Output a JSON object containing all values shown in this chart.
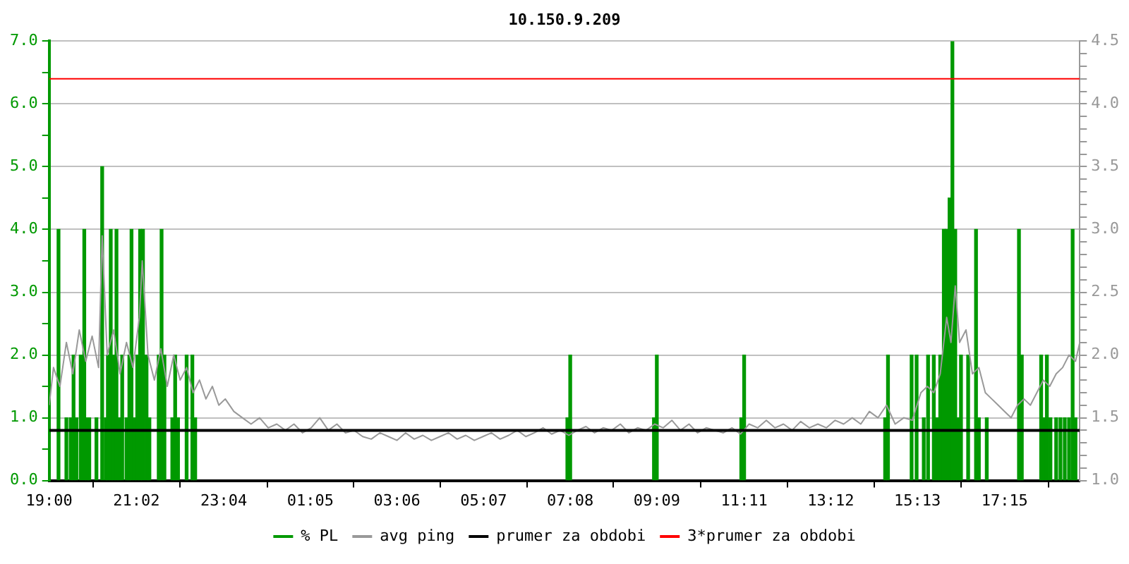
{
  "chart_data": {
    "type": "bar",
    "title": "10.150.9.209",
    "xlim": [
      "2000-01-01T19:00",
      "2000-01-02T19:00"
    ],
    "xticks": [
      {
        "value": "2000-01-01T19:00",
        "label": "19:00"
      },
      {
        "value": "2000-01-01T21:02",
        "label": "21:02"
      },
      {
        "value": "2000-01-01T23:04",
        "label": "23:04"
      },
      {
        "value": "2000-01-02T01:05",
        "label": "01:05"
      },
      {
        "value": "2000-01-02T03:06",
        "label": "03:06"
      },
      {
        "value": "2000-01-02T05:07",
        "label": "05:07"
      },
      {
        "value": "2000-01-02T07:08",
        "label": "07:08"
      },
      {
        "value": "2000-01-02T09:09",
        "label": "09:09"
      },
      {
        "value": "2000-01-02T11:11",
        "label": "11:11"
      },
      {
        "value": "2000-01-02T13:12",
        "label": "13:12"
      },
      {
        "value": "2000-01-02T15:13",
        "label": "15:13"
      },
      {
        "value": "2000-01-02T17:15",
        "label": "17:15"
      }
    ],
    "ylim": [
      0,
      7
    ],
    "yticks": [
      {
        "value": 0,
        "label": "0.0"
      },
      {
        "value": 0.5,
        "label": null
      },
      {
        "value": 1,
        "label": "1.0"
      },
      {
        "value": 1.5,
        "label": null
      },
      {
        "value": 2,
        "label": "2.0"
      },
      {
        "value": 2.5,
        "label": null
      },
      {
        "value": 3,
        "label": "3.0"
      },
      {
        "value": 3.5,
        "label": null
      },
      {
        "value": 4,
        "label": "4.0"
      },
      {
        "value": 4.5,
        "label": null
      },
      {
        "value": 5,
        "label": "5.0"
      },
      {
        "value": 5.5,
        "label": null
      },
      {
        "value": 6,
        "label": "6.0"
      },
      {
        "value": 6.5,
        "label": null
      },
      {
        "value": 7,
        "label": "7.0"
      }
    ],
    "y2lim": [
      1,
      4.5
    ],
    "y2ticks": [
      {
        "value": 1,
        "label": "1.0"
      },
      {
        "value": 1.1,
        "label": null
      },
      {
        "value": 1.2,
        "label": null
      },
      {
        "value": 1.3,
        "label": null
      },
      {
        "value": 1.4,
        "label": null
      },
      {
        "value": 1.5,
        "label": "1.5"
      },
      {
        "value": 1.6,
        "label": null
      },
      {
        "value": 1.7,
        "label": null
      },
      {
        "value": 1.8,
        "label": null
      },
      {
        "value": 1.9,
        "label": null
      },
      {
        "value": 2,
        "label": "2.0"
      },
      {
        "value": 2.1,
        "label": null
      },
      {
        "value": 2.2,
        "label": null
      },
      {
        "value": 2.3,
        "label": null
      },
      {
        "value": 2.4,
        "label": null
      },
      {
        "value": 2.5,
        "label": "2.5"
      },
      {
        "value": 2.6,
        "label": null
      },
      {
        "value": 2.7,
        "label": null
      },
      {
        "value": 2.8,
        "label": null
      },
      {
        "value": 2.9,
        "label": null
      },
      {
        "value": 3,
        "label": "3.0"
      },
      {
        "value": 3.1,
        "label": null
      },
      {
        "value": 3.2,
        "label": null
      },
      {
        "value": 3.3,
        "label": null
      },
      {
        "value": 3.4,
        "label": null
      },
      {
        "value": 3.5,
        "label": "3.5"
      },
      {
        "value": 3.6,
        "label": null
      },
      {
        "value": 3.7,
        "label": null
      },
      {
        "value": 3.8,
        "label": null
      },
      {
        "value": 3.9,
        "label": null
      },
      {
        "value": 4,
        "label": "4.0"
      },
      {
        "value": 4.1,
        "label": null
      },
      {
        "value": 4.2,
        "label": null
      },
      {
        "value": 4.3,
        "label": null
      },
      {
        "value": 4.4,
        "label": null
      },
      {
        "value": 4.5,
        "label": "4.5"
      }
    ],
    "grid": "y",
    "legend": "bottom",
    "series": [
      {
        "name": "% PL",
        "color": "#009900",
        "x": [
          "2000-01-01T19:13",
          "2000-01-01T19:24",
          "2000-01-01T19:30",
          "2000-01-01T19:34",
          "2000-01-01T19:38",
          "2000-01-01T19:42",
          "2000-01-01T19:44",
          "2000-01-01T19:49",
          "2000-01-01T19:53",
          "2000-01-01T19:56",
          "2000-01-01T20:06",
          "2000-01-01T20:14",
          "2000-01-01T20:19",
          "2000-01-01T20:22",
          "2000-01-01T20:26",
          "2000-01-01T20:30",
          "2000-01-01T20:34",
          "2000-01-01T20:38",
          "2000-01-01T20:42",
          "2000-01-01T20:48",
          "2000-01-01T20:52",
          "2000-01-01T20:55",
          "2000-01-01T20:59",
          "2000-01-01T21:03",
          "2000-01-01T21:07",
          "2000-01-01T21:11",
          "2000-01-01T21:16",
          "2000-01-01T21:20",
          "2000-01-01T21:33",
          "2000-01-01T21:37",
          "2000-01-01T21:41",
          "2000-01-01T21:52",
          "2000-01-01T21:56",
          "2000-01-01T22:00",
          "2000-01-01T22:12",
          "2000-01-01T22:20",
          "2000-01-01T22:24",
          "2000-01-02T07:04",
          "2000-01-02T07:08",
          "2000-01-02T09:05",
          "2000-01-02T09:09",
          "2000-01-02T11:07",
          "2000-01-02T11:11",
          "2000-01-02T14:28",
          "2000-01-02T14:32",
          "2000-01-02T15:05",
          "2000-01-02T15:12",
          "2000-01-02T15:22",
          "2000-01-02T15:28",
          "2000-01-02T15:36",
          "2000-01-02T15:41",
          "2000-01-02T15:45",
          "2000-01-02T15:50",
          "2000-01-02T15:54",
          "2000-01-02T15:58",
          "2000-01-02T16:02",
          "2000-01-02T16:06",
          "2000-01-02T16:10",
          "2000-01-02T16:14",
          "2000-01-02T16:24",
          "2000-01-02T16:35",
          "2000-01-02T16:39",
          "2000-01-02T16:50",
          "2000-01-02T17:35",
          "2000-01-02T17:39",
          "2000-01-02T18:06",
          "2000-01-02T18:10",
          "2000-01-02T18:14",
          "2000-01-02T18:19",
          "2000-01-02T18:27",
          "2000-01-02T18:33",
          "2000-01-02T18:39",
          "2000-01-02T18:45",
          "2000-01-02T18:50",
          "2000-01-02T18:54"
        ],
        "values": [
          4,
          1,
          1,
          2,
          1,
          null,
          2,
          4,
          1,
          1,
          1,
          5,
          1,
          2,
          4,
          2,
          4,
          1,
          2,
          1,
          2,
          4,
          1,
          2,
          4,
          4,
          2,
          1,
          2,
          4,
          2,
          1,
          2,
          1,
          2,
          2,
          1,
          1,
          2,
          1,
          2,
          1,
          2,
          1,
          2,
          2,
          2,
          1,
          2,
          2,
          1,
          2,
          4,
          4,
          4.5,
          7,
          4,
          1,
          2,
          2,
          4,
          1,
          1,
          4,
          2,
          2,
          1,
          2,
          1,
          1,
          1,
          1,
          1,
          4,
          1
        ]
      },
      {
        "name": "avg ping",
        "type": "line",
        "axis": "y2",
        "color": "#999999",
        "x": [
          "2000-01-01T19:00",
          "2000-01-01T19:06",
          "2000-01-01T19:15",
          "2000-01-01T19:24",
          "2000-01-01T19:33",
          "2000-01-01T19:42",
          "2000-01-01T19:51",
          "2000-01-01T20:00",
          "2000-01-01T20:09",
          "2000-01-01T20:14",
          "2000-01-01T20:21",
          "2000-01-01T20:30",
          "2000-01-01T20:39",
          "2000-01-01T20:48",
          "2000-01-01T20:57",
          "2000-01-01T21:06",
          "2000-01-01T21:10",
          "2000-01-01T21:18",
          "2000-01-01T21:27",
          "2000-01-01T21:36",
          "2000-01-01T21:45",
          "2000-01-01T21:54",
          "2000-01-01T22:03",
          "2000-01-01T22:12",
          "2000-01-01T22:21",
          "2000-01-01T22:30",
          "2000-01-01T22:39",
          "2000-01-01T22:48",
          "2000-01-01T22:57",
          "2000-01-01T23:06",
          "2000-01-01T23:18",
          "2000-01-01T23:30",
          "2000-01-01T23:42",
          "2000-01-01T23:54",
          "2000-01-02T00:06",
          "2000-01-02T00:18",
          "2000-01-02T00:30",
          "2000-01-02T00:42",
          "2000-01-02T00:54",
          "2000-01-02T01:06",
          "2000-01-02T01:18",
          "2000-01-02T01:30",
          "2000-01-02T01:42",
          "2000-01-02T01:54",
          "2000-01-02T02:06",
          "2000-01-02T02:18",
          "2000-01-02T02:30",
          "2000-01-02T02:42",
          "2000-01-02T02:54",
          "2000-01-02T03:06",
          "2000-01-02T03:18",
          "2000-01-02T03:30",
          "2000-01-02T03:42",
          "2000-01-02T03:54",
          "2000-01-02T04:06",
          "2000-01-02T04:18",
          "2000-01-02T04:30",
          "2000-01-02T04:42",
          "2000-01-02T04:54",
          "2000-01-02T05:06",
          "2000-01-02T05:18",
          "2000-01-02T05:30",
          "2000-01-02T05:42",
          "2000-01-02T05:54",
          "2000-01-02T06:06",
          "2000-01-02T06:18",
          "2000-01-02T06:30",
          "2000-01-02T06:42",
          "2000-01-02T06:54",
          "2000-01-02T07:06",
          "2000-01-02T07:18",
          "2000-01-02T07:30",
          "2000-01-02T07:42",
          "2000-01-02T07:54",
          "2000-01-02T08:06",
          "2000-01-02T08:18",
          "2000-01-02T08:30",
          "2000-01-02T08:42",
          "2000-01-02T08:54",
          "2000-01-02T09:06",
          "2000-01-02T09:18",
          "2000-01-02T09:30",
          "2000-01-02T09:42",
          "2000-01-02T09:54",
          "2000-01-02T10:06",
          "2000-01-02T10:18",
          "2000-01-02T10:30",
          "2000-01-02T10:42",
          "2000-01-02T10:54",
          "2000-01-02T11:06",
          "2000-01-02T11:18",
          "2000-01-02T11:30",
          "2000-01-02T11:42",
          "2000-01-02T11:54",
          "2000-01-02T12:06",
          "2000-01-02T12:18",
          "2000-01-02T12:30",
          "2000-01-02T12:42",
          "2000-01-02T12:54",
          "2000-01-02T13:06",
          "2000-01-02T13:18",
          "2000-01-02T13:30",
          "2000-01-02T13:42",
          "2000-01-02T13:54",
          "2000-01-02T14:06",
          "2000-01-02T14:18",
          "2000-01-02T14:30",
          "2000-01-02T14:42",
          "2000-01-02T14:54",
          "2000-01-02T15:06",
          "2000-01-02T15:18",
          "2000-01-02T15:27",
          "2000-01-02T15:36",
          "2000-01-02T15:45",
          "2000-01-02T15:54",
          "2000-01-02T16:00",
          "2000-01-02T16:06",
          "2000-01-02T16:12",
          "2000-01-02T16:21",
          "2000-01-02T16:30",
          "2000-01-02T16:39",
          "2000-01-02T16:48",
          "2000-01-02T16:57",
          "2000-01-02T17:06",
          "2000-01-02T17:15",
          "2000-01-02T17:24",
          "2000-01-02T17:33",
          "2000-01-02T17:42",
          "2000-01-02T17:51",
          "2000-01-02T18:00",
          "2000-01-02T18:09",
          "2000-01-02T18:18",
          "2000-01-02T18:27",
          "2000-01-02T18:36",
          "2000-01-02T18:45",
          "2000-01-02T18:54",
          "2000-01-02T19:00"
        ],
        "values": [
          1.6,
          1.9,
          1.75,
          2.1,
          1.85,
          2.2,
          1.95,
          2.15,
          1.9,
          2.95,
          2.0,
          2.2,
          1.85,
          2.1,
          1.9,
          2.3,
          2.75,
          2.0,
          1.8,
          2.05,
          1.75,
          2.0,
          1.8,
          1.9,
          1.7,
          1.8,
          1.65,
          1.75,
          1.6,
          1.65,
          1.55,
          1.5,
          1.45,
          1.5,
          1.42,
          1.45,
          1.4,
          1.45,
          1.38,
          1.42,
          1.5,
          1.4,
          1.45,
          1.38,
          1.4,
          1.35,
          1.33,
          1.38,
          1.35,
          1.32,
          1.38,
          1.33,
          1.36,
          1.32,
          1.35,
          1.38,
          1.33,
          1.36,
          1.32,
          1.35,
          1.38,
          1.33,
          1.36,
          1.4,
          1.35,
          1.38,
          1.42,
          1.37,
          1.4,
          1.36,
          1.4,
          1.43,
          1.38,
          1.42,
          1.4,
          1.45,
          1.38,
          1.42,
          1.4,
          1.45,
          1.42,
          1.48,
          1.4,
          1.45,
          1.38,
          1.42,
          1.4,
          1.38,
          1.42,
          1.37,
          1.45,
          1.42,
          1.48,
          1.42,
          1.45,
          1.4,
          1.47,
          1.42,
          1.45,
          1.42,
          1.48,
          1.45,
          1.5,
          1.45,
          1.55,
          1.5,
          1.6,
          1.45,
          1.5,
          1.48,
          1.7,
          1.75,
          1.7,
          1.85,
          2.3,
          2.1,
          2.55,
          2.1,
          2.2,
          1.85,
          1.9,
          1.7,
          1.65,
          1.6,
          1.55,
          1.5,
          1.6,
          1.65,
          1.6,
          1.7,
          1.8,
          1.75,
          1.85,
          1.9,
          2.0,
          1.95,
          2.1
        ]
      }
    ],
    "ref_lines": [
      {
        "axis": "y2",
        "value": 1.4,
        "label": "prumer za obdobi",
        "color": "#000000"
      },
      {
        "axis": "y2",
        "value": 4.2,
        "label": "3*prumer za obdobi",
        "color": "#ff0000"
      }
    ]
  }
}
